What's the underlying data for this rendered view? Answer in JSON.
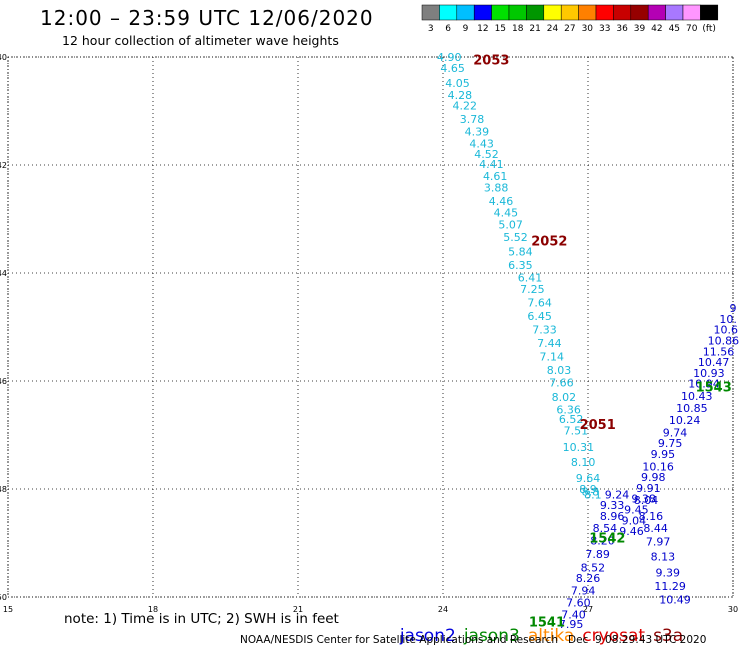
{
  "header": {
    "title": "12:00 – 23:59 UTC 12/06/2020",
    "subtitle": "12 hour collection of altimeter wave heights"
  },
  "colorbar": {
    "colors": [
      "#7f7f7f",
      "#00ffff",
      "#00bfff",
      "#0000ff",
      "#00e100",
      "#00c800",
      "#009600",
      "#ffff00",
      "#ffc800",
      "#ff8000",
      "#ff0000",
      "#c80000",
      "#960000",
      "#b400b4",
      "#a878ff",
      "#ff96ff",
      "#000000"
    ],
    "labels": [
      "3",
      "6",
      "9",
      "12",
      "15",
      "18",
      "21",
      "24",
      "27",
      "30",
      "33",
      "36",
      "39",
      "42",
      "45",
      "70",
      "(ft)"
    ]
  },
  "footer": {
    "note": "note: 1) Time is in UTC; 2) SWH is in feet",
    "satellites": [
      {
        "name": "jason2",
        "color": "#0000dd"
      },
      {
        "name": "jason3",
        "color": "#008800"
      },
      {
        "name": "altika",
        "color": "#ff8800"
      },
      {
        "name": "cryosat",
        "color": "#dd0000"
      },
      {
        "name": "s3a",
        "color": "#8b0000"
      }
    ],
    "credit": "NOAA/NESDIS Center for Satellite Applications and Research   Dec  9 08:29:43 UTC 2020"
  },
  "chart_data": {
    "type": "scatter",
    "title": "12:00 – 23:59 UTC 12/06/2020",
    "subtitle": "12 hour collection of altimeter wave heights",
    "x_ticks": [
      "15",
      "18",
      "21",
      "24",
      "27",
      "30"
    ],
    "y_ticks": [
      "-40",
      "-42",
      "-44",
      "-46",
      "-48",
      "-50"
    ],
    "xlim": [
      15,
      30
    ],
    "ylim": [
      -50,
      -40
    ],
    "grid": true,
    "series": [
      {
        "name": "altika",
        "color": "#1ab8d8",
        "points": [
          [
            24.13,
            -40.0,
            "4.90"
          ],
          [
            24.2,
            -40.2,
            "4.65"
          ],
          [
            24.3,
            -40.48,
            "4.05"
          ],
          [
            24.35,
            -40.7,
            "4.28"
          ],
          [
            24.45,
            -40.9,
            "4.22"
          ],
          [
            24.6,
            -41.15,
            "3.78"
          ],
          [
            24.7,
            -41.38,
            "4.39"
          ],
          [
            24.8,
            -41.6,
            "4.43"
          ],
          [
            24.9,
            -41.8,
            "4.52"
          ],
          [
            25.0,
            -41.98,
            "4.41"
          ],
          [
            25.08,
            -42.2,
            "4.61"
          ],
          [
            25.1,
            -42.42,
            "3.88"
          ],
          [
            25.2,
            -42.67,
            "4.46"
          ],
          [
            25.3,
            -42.88,
            "4.45"
          ],
          [
            25.4,
            -43.1,
            "5.07"
          ],
          [
            25.5,
            -43.33,
            "5.52"
          ],
          [
            25.6,
            -43.6,
            "5.84"
          ],
          [
            25.6,
            -43.85,
            "6.35"
          ],
          [
            25.8,
            -44.08,
            "6.41"
          ],
          [
            25.85,
            -44.3,
            "7.25"
          ],
          [
            26.0,
            -44.55,
            "7.64"
          ],
          [
            26.0,
            -44.8,
            "6.45"
          ],
          [
            26.1,
            -45.05,
            "7.33"
          ],
          [
            26.2,
            -45.3,
            "7.44"
          ],
          [
            26.25,
            -45.55,
            "7.14"
          ],
          [
            26.4,
            -45.8,
            "8.03"
          ],
          [
            26.45,
            -46.03,
            "7.66"
          ],
          [
            26.5,
            -46.3,
            "8.02"
          ],
          [
            26.6,
            -46.53,
            "6.36"
          ],
          [
            26.65,
            -46.7,
            "6.52"
          ],
          [
            26.75,
            -46.92,
            "7.51"
          ],
          [
            26.8,
            -47.22,
            "10.31"
          ],
          [
            26.9,
            -47.5,
            "8.10"
          ],
          [
            27.0,
            -47.8,
            "9.64"
          ],
          [
            27.0,
            -48.0,
            "8.9"
          ],
          [
            27.05,
            -48.05,
            "8.8"
          ],
          [
            27.1,
            -48.1,
            "8.1"
          ]
        ]
      },
      {
        "name": "jason2 pass 1543",
        "color": "#0000cc",
        "points": [
          [
            30.0,
            -44.65,
            "9"
          ],
          [
            29.9,
            -44.85,
            "10."
          ],
          [
            29.85,
            -45.05,
            "10.6"
          ],
          [
            29.8,
            -45.25,
            "10.86"
          ],
          [
            29.7,
            -45.45,
            "11.56"
          ],
          [
            29.6,
            -45.65,
            "10.47"
          ],
          [
            29.5,
            -45.85,
            "10.93"
          ],
          [
            29.4,
            -46.05,
            "10.94"
          ],
          [
            29.25,
            -46.28,
            "10.43"
          ],
          [
            29.15,
            -46.5,
            "10.85"
          ],
          [
            29.0,
            -46.72,
            "10.24"
          ],
          [
            28.8,
            -46.95,
            "9.74"
          ],
          [
            28.7,
            -47.15,
            "9.75"
          ],
          [
            28.55,
            -47.35,
            "9.95"
          ],
          [
            28.45,
            -47.58,
            "10.16"
          ],
          [
            28.35,
            -47.78,
            "9.98"
          ],
          [
            28.25,
            -47.98,
            "9.91"
          ],
          [
            28.15,
            -48.18,
            "9.38"
          ],
          [
            28.0,
            -48.38,
            "9.45"
          ],
          [
            27.95,
            -48.58,
            "9.04"
          ],
          [
            27.9,
            -48.78,
            "9.46"
          ]
        ]
      },
      {
        "name": "jason2 pass 1542",
        "color": "#0000cc",
        "points": [
          [
            27.6,
            -48.1,
            "9.24"
          ],
          [
            27.5,
            -48.3,
            "9.33"
          ],
          [
            27.5,
            -48.5,
            "8.96"
          ],
          [
            27.35,
            -48.72,
            "8.54"
          ],
          [
            27.3,
            -48.95,
            "8.20"
          ],
          [
            27.2,
            -49.2,
            "7.89"
          ],
          [
            27.1,
            -49.45,
            "8.52"
          ],
          [
            27.0,
            -49.65,
            "8.26"
          ],
          [
            26.9,
            -49.88,
            "7.94"
          ],
          [
            26.8,
            -50.1,
            "7.60"
          ],
          [
            26.7,
            -50.32,
            "7.40"
          ],
          [
            26.65,
            -50.5,
            "7.95"
          ]
        ]
      },
      {
        "name": "jason2 pass 1541",
        "color": "#0000cc",
        "points": [
          [
            28.2,
            -48.2,
            "8.04"
          ],
          [
            28.3,
            -48.5,
            "8.16"
          ],
          [
            28.4,
            -48.72,
            "8.44"
          ],
          [
            28.45,
            -48.97,
            "7.97"
          ],
          [
            28.55,
            -49.25,
            "8.13"
          ],
          [
            28.65,
            -49.55,
            "9.39"
          ],
          [
            28.7,
            -49.8,
            "11.29"
          ],
          [
            28.8,
            -50.05,
            "10.49"
          ]
        ]
      }
    ],
    "pass_labels": [
      {
        "text": "2053",
        "x": 25.0,
        "y": -40.05,
        "color": "#8b0000"
      },
      {
        "text": "2052",
        "x": 26.2,
        "y": -43.4,
        "color": "#8b0000"
      },
      {
        "text": "2051",
        "x": 27.2,
        "y": -46.8,
        "color": "#8b0000"
      },
      {
        "text": "1543",
        "x": 29.6,
        "y": -46.1,
        "color": "#008800"
      },
      {
        "text": "1542",
        "x": 27.4,
        "y": -48.9,
        "color": "#008800"
      },
      {
        "text": "1541",
        "x": 26.15,
        "y": -50.45,
        "color": "#008800"
      }
    ]
  }
}
